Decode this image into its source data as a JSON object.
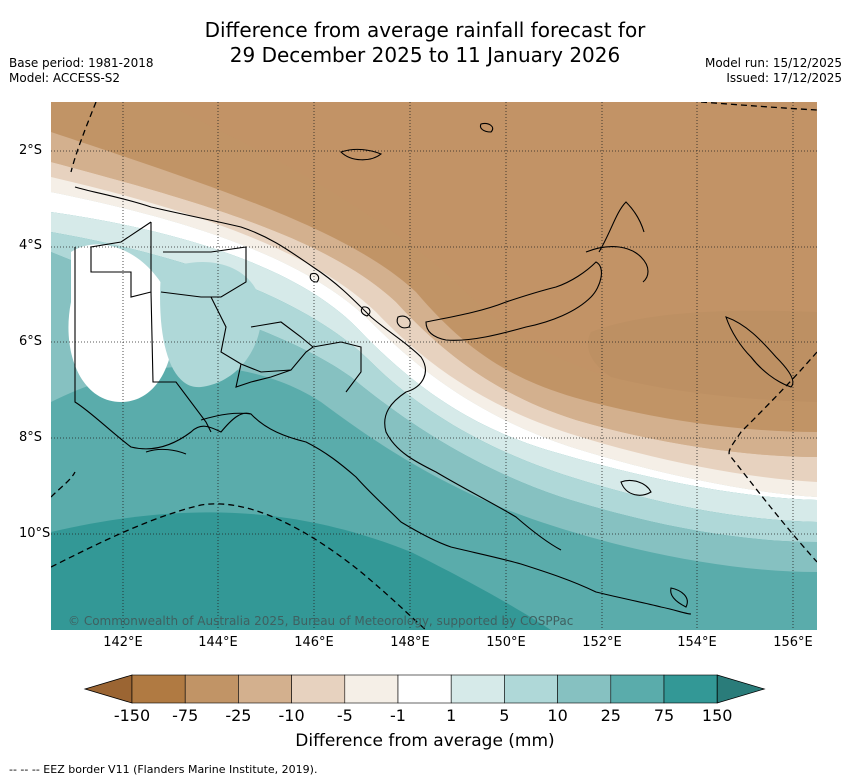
{
  "title_line1": "Difference from average rainfall forecast for",
  "title_line2": "29 December 2025 to 11 January 2026",
  "base_period": "Base period: 1981-2018",
  "model": "Model: ACCESS-S2",
  "model_run": "Model run: 15/12/2025",
  "issued": "Issued: 17/12/2025",
  "copyright": "© Commonwealth of Australia 2025, Bureau of Meteorology, supported by COSPPac",
  "x_ticks": [
    "142°E",
    "144°E",
    "146°E",
    "148°E",
    "150°E",
    "152°E",
    "154°E",
    "156°E"
  ],
  "y_ticks": [
    "2°S",
    "4°S",
    "6°S",
    "8°S",
    "10°S"
  ],
  "colorbar": {
    "title": "Difference from average (mm)",
    "labels": [
      "-150",
      "-75",
      "-25",
      "-10",
      "-5",
      "-1",
      "1",
      "5",
      "10",
      "25",
      "75",
      "150"
    ],
    "colors": [
      "#9b6533",
      "#b07a42",
      "#c19466",
      "#d3b08e",
      "#e7d2bf",
      "#f5efe7",
      "#ffffff",
      "#d6eae9",
      "#afd8d8",
      "#86c1c1",
      "#5aacab",
      "#339896",
      "#2a7c7a"
    ]
  },
  "footer": "--  --  -- EEZ border V11 (Flanders Marine Institute, 2019)."
}
